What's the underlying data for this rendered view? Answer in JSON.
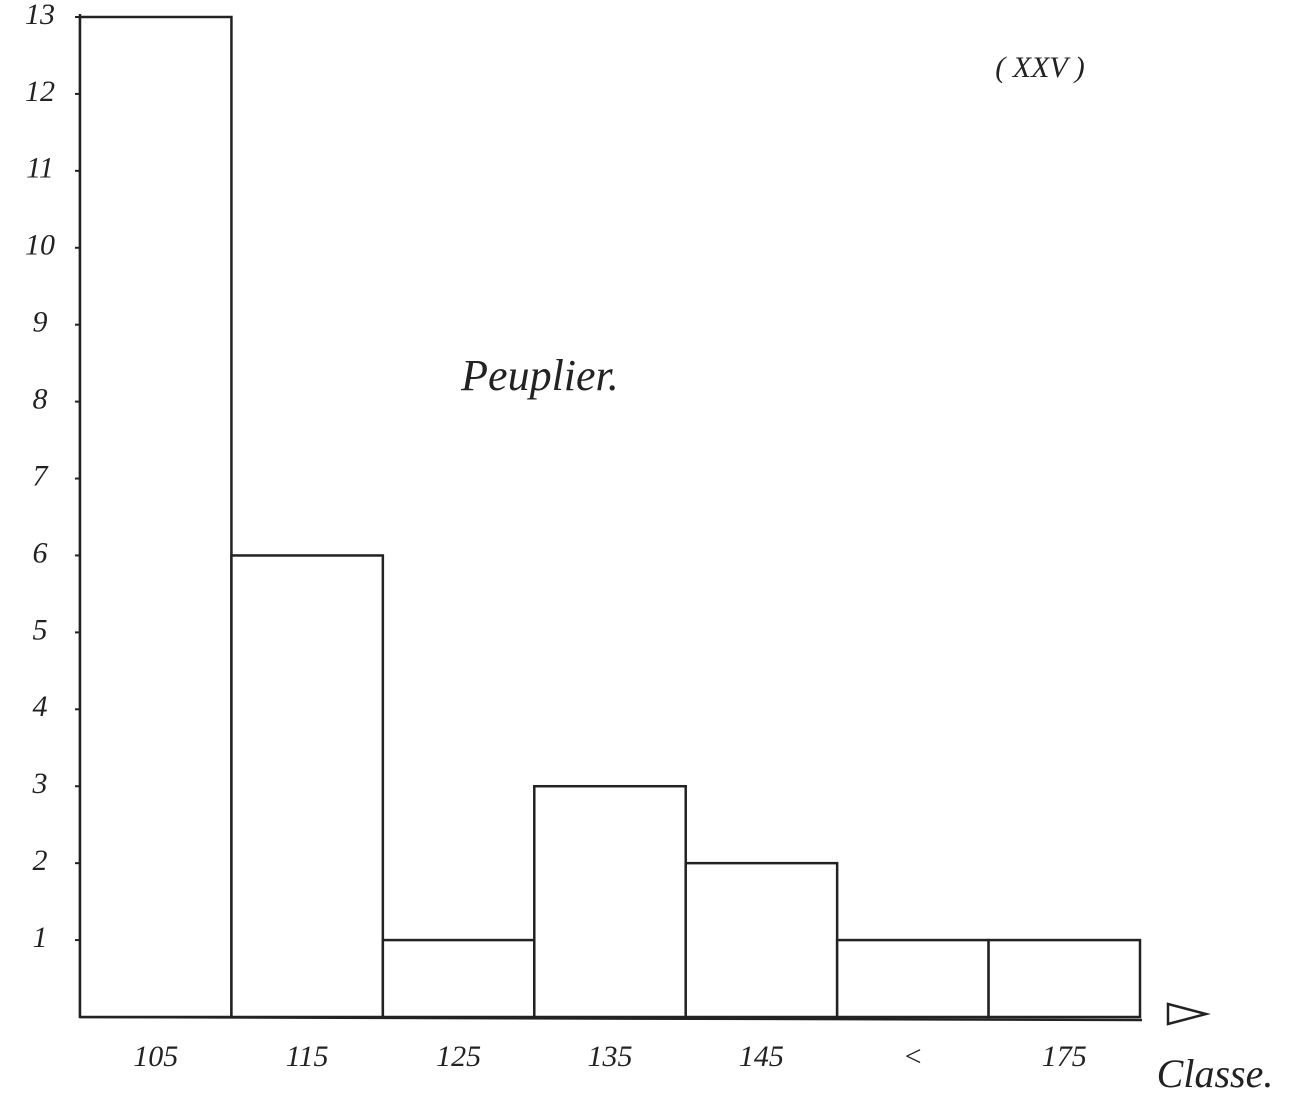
{
  "chart_data": {
    "type": "bar",
    "subtitle": "( XXV )",
    "annotation": "Peuplier.",
    "x_label": "Classe.",
    "categories": [
      "105",
      "115",
      "125",
      "135",
      "145",
      "<",
      "175"
    ],
    "values": [
      13,
      6,
      1,
      3,
      2,
      1,
      1
    ],
    "color": "#ffffff",
    "ylim": [
      0,
      13
    ],
    "yticks": [
      1,
      2,
      3,
      4,
      5,
      6,
      7,
      8,
      9,
      10,
      11,
      12,
      13
    ],
    "grid": false
  }
}
